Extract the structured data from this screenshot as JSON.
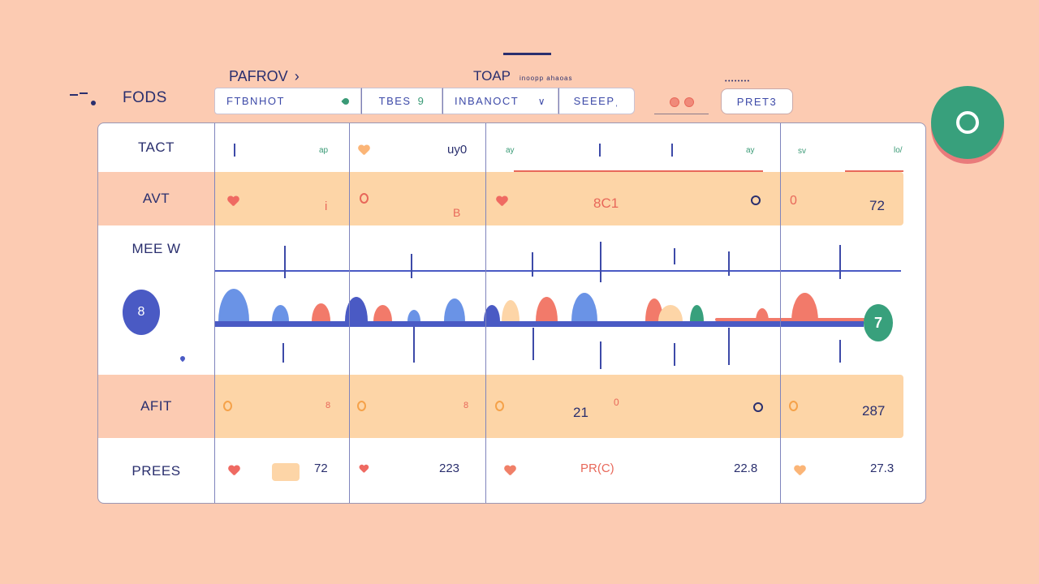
{
  "header": {
    "app_title": "FODS",
    "breadcrumb": "PAFROV",
    "breadcrumb_chevron": "›",
    "section_title": "TOAP",
    "section_subtitle": "inoopp ahaoas",
    "mini_caption": "••••••••",
    "filters": [
      {
        "label": "FTBNHOT",
        "icon": "tag-icon"
      },
      {
        "label": "TBES",
        "icon": "info-icon",
        "icon_glyph": "9"
      },
      {
        "label": "INBANOCT",
        "icon": "chevron-down-icon",
        "icon_glyph": "∨"
      },
      {
        "label": "SEEEP",
        "icon": "cursor-icon",
        "icon_glyph": "ˌ"
      }
    ],
    "status_indicators": [
      "",
      ""
    ],
    "reset_label": "PRET3",
    "fab_icon": "circle-icon"
  },
  "table": {
    "rows": [
      {
        "label": "TACT",
        "cells": [
          {
            "value": "",
            "small": "ap"
          },
          {
            "value": "uy0",
            "icon": "heart-icon"
          },
          {
            "value": "",
            "small": "ay",
            "small_right": "ay"
          },
          {
            "value": "",
            "small": "sv",
            "small_right": "lo/"
          }
        ]
      },
      {
        "label": "AVT",
        "cells": [
          {
            "value": "i",
            "icon": "heart-icon"
          },
          {
            "value": "B",
            "icon": "ring-icon"
          },
          {
            "value": "8C1",
            "icon": "heart-icon"
          },
          {
            "value": "72",
            "icon": "ring-icon"
          }
        ]
      },
      {
        "label": "MEE W",
        "avatar_label": "8",
        "track_end_label": "7"
      },
      {
        "label": "AFIT",
        "cells": [
          {
            "value": "8",
            "icon": "ring-icon"
          },
          {
            "value": "8",
            "icon": "ring-icon"
          },
          {
            "value": "21",
            "badge": "0",
            "icon": "ring-icon"
          },
          {
            "value": "287",
            "icon": "ring-icon"
          }
        ]
      },
      {
        "label": "PREES",
        "cells": [
          {
            "value": "72",
            "icon": "heart-icon"
          },
          {
            "value": "223",
            "icon": "heart-icon"
          },
          {
            "value": "PR(C)",
            "value_right": "22.8",
            "icon": "heart-icon"
          },
          {
            "value": "27.3",
            "icon": "heart-icon"
          }
        ]
      }
    ]
  },
  "colors": {
    "background": "#fccbb2",
    "navy": "#2a2f6e",
    "blue": "#4a5ac4",
    "light_blue": "#6a93e6",
    "coral": "#f27a6a",
    "peach": "#fdd5a7",
    "green": "#38a07c"
  }
}
